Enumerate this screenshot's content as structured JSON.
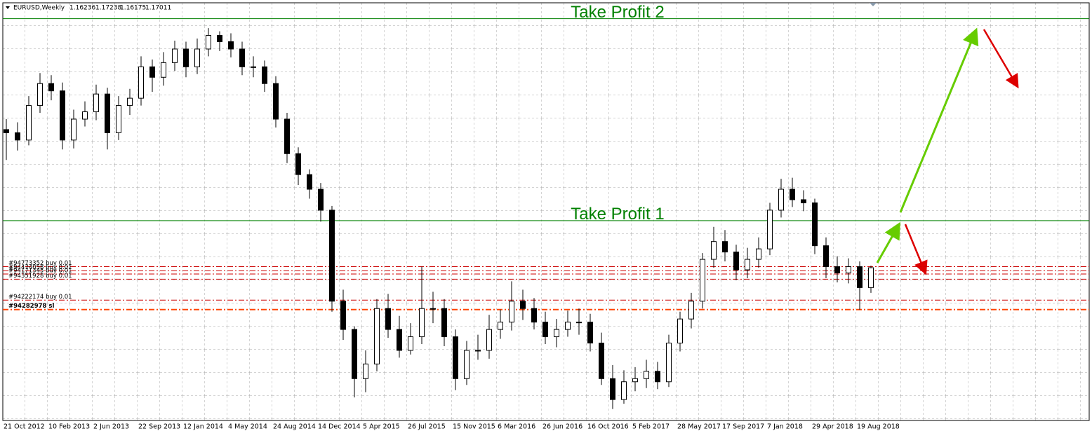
{
  "chart_data": {
    "type": "candlestick",
    "symbol": "EURUSD,Weekly",
    "quote": [
      1.16236,
      1.17238,
      1.16175,
      1.17011
    ],
    "up_color": "#ffffff",
    "down_color": "#000000",
    "ylim": [
      1.024,
      1.4225
    ],
    "grid": true,
    "categories": [
      "21 Oct 2012",
      null,
      null,
      null,
      "10 Feb 2013",
      null,
      null,
      null,
      "2 Jun 2013",
      null,
      null,
      null,
      "22 Sep 2013",
      null,
      null,
      null,
      "12 Jan 2014",
      null,
      null,
      null,
      "4 May 2014",
      null,
      null,
      null,
      "24 Aug 2014",
      null,
      null,
      null,
      "14 Dec 2014",
      null,
      null,
      null,
      "5 Apr 2015",
      null,
      null,
      null,
      "26 Jul 2015",
      null,
      null,
      null,
      "15 Nov 2015",
      null,
      null,
      null,
      "6 Mar 2016",
      null,
      null,
      null,
      "26 Jun 2016",
      null,
      null,
      null,
      "16 Oct 2016",
      null,
      null,
      null,
      "5 Feb 2017",
      null,
      null,
      null,
      "28 May 2017",
      null,
      null,
      null,
      "17 Sep 2017",
      null,
      null,
      null,
      "7 Jan 2018",
      null,
      null,
      null,
      "29 Apr 2018",
      null,
      null,
      null,
      "19 Aug 2018",
      null
    ],
    "open": [
      1.302,
      1.299,
      1.292,
      1.325,
      1.346,
      1.339,
      1.292,
      1.312,
      1.319,
      1.336,
      1.299,
      1.325,
      1.332,
      1.362,
      1.352,
      1.366,
      1.379,
      1.362,
      1.379,
      1.392,
      1.386,
      1.379,
      1.362,
      1.362,
      1.346,
      1.312,
      1.279,
      1.259,
      1.245,
      1.225,
      1.138,
      1.111,
      1.064,
      1.078,
      1.131,
      1.111,
      1.091,
      1.104,
      1.131,
      1.131,
      1.104,
      1.064,
      1.091,
      1.091,
      1.111,
      1.118,
      1.138,
      1.131,
      1.118,
      1.104,
      1.111,
      1.118,
      1.118,
      1.098,
      1.064,
      1.044,
      1.061,
      1.064,
      1.071,
      1.061,
      1.098,
      1.121,
      1.138,
      1.178,
      1.195,
      1.185,
      1.168,
      1.178,
      1.188,
      1.225,
      1.245,
      1.235,
      1.232,
      1.191,
      1.171,
      1.165,
      1.171,
      1.151
    ],
    "high": [
      1.312,
      1.309,
      1.334,
      1.356,
      1.354,
      1.347,
      1.321,
      1.329,
      1.345,
      1.342,
      1.334,
      1.341,
      1.372,
      1.369,
      1.376,
      1.387,
      1.386,
      1.389,
      1.399,
      1.396,
      1.394,
      1.386,
      1.372,
      1.368,
      1.353,
      1.318,
      1.285,
      1.264,
      1.251,
      1.229,
      1.149,
      1.114,
      1.091,
      1.14,
      1.145,
      1.124,
      1.117,
      1.171,
      1.147,
      1.14,
      1.111,
      1.1,
      1.106,
      1.125,
      1.13,
      1.157,
      1.149,
      1.141,
      1.128,
      1.121,
      1.129,
      1.131,
      1.126,
      1.108,
      1.077,
      1.072,
      1.075,
      1.082,
      1.08,
      1.106,
      1.128,
      1.146,
      1.184,
      1.209,
      1.206,
      1.192,
      1.189,
      1.199,
      1.232,
      1.255,
      1.256,
      1.244,
      1.236,
      1.199,
      1.181,
      1.179,
      1.176,
      1.172
    ],
    "low": [
      1.273,
      1.282,
      1.287,
      1.318,
      1.33,
      1.283,
      1.284,
      1.305,
      1.311,
      1.283,
      1.292,
      1.316,
      1.325,
      1.338,
      1.344,
      1.358,
      1.352,
      1.355,
      1.372,
      1.377,
      1.371,
      1.354,
      1.352,
      1.338,
      1.304,
      1.27,
      1.249,
      1.236,
      1.214,
      1.128,
      1.101,
      1.046,
      1.051,
      1.071,
      1.103,
      1.084,
      1.087,
      1.097,
      1.117,
      1.095,
      1.053,
      1.058,
      1.082,
      1.083,
      1.102,
      1.11,
      1.12,
      1.111,
      1.097,
      1.094,
      1.104,
      1.106,
      1.09,
      1.058,
      1.035,
      1.04,
      1.052,
      1.055,
      1.054,
      1.056,
      1.09,
      1.112,
      1.131,
      1.17,
      1.176,
      1.158,
      1.16,
      1.17,
      1.182,
      1.218,
      1.228,
      1.224,
      1.183,
      1.16,
      1.156,
      1.155,
      1.13,
      1.146
    ],
    "close": [
      1.299,
      1.292,
      1.325,
      1.346,
      1.339,
      1.292,
      1.312,
      1.319,
      1.336,
      1.299,
      1.325,
      1.332,
      1.362,
      1.352,
      1.366,
      1.379,
      1.362,
      1.379,
      1.392,
      1.386,
      1.379,
      1.362,
      1.362,
      1.346,
      1.312,
      1.279,
      1.259,
      1.245,
      1.225,
      1.138,
      1.111,
      1.064,
      1.078,
      1.131,
      1.111,
      1.091,
      1.104,
      1.131,
      1.131,
      1.104,
      1.064,
      1.091,
      1.091,
      1.111,
      1.118,
      1.138,
      1.131,
      1.118,
      1.104,
      1.111,
      1.118,
      1.118,
      1.098,
      1.064,
      1.044,
      1.061,
      1.064,
      1.071,
      1.061,
      1.098,
      1.121,
      1.138,
      1.178,
      1.195,
      1.185,
      1.168,
      1.178,
      1.188,
      1.225,
      1.245,
      1.235,
      1.232,
      1.191,
      1.171,
      1.165,
      1.171,
      1.151,
      1.17
    ],
    "targets": [
      {
        "label": "Take Profit 2",
        "price": 1.408,
        "color": "#008000"
      },
      {
        "label": "Take Profit 1",
        "price": 1.215,
        "color": "#008000"
      }
    ],
    "orders": [
      {
        "label": "#94773352 buy 0.01",
        "price": 1.171,
        "color": "#cc0000"
      },
      {
        "label": "#94474058 buy 0.01",
        "price": 1.167,
        "color": "#cc0000"
      },
      {
        "label": "#94171345 buy 0.01",
        "price": 1.164,
        "color": "#cc0000"
      },
      {
        "label": "#94351928 buy 0.01",
        "price": 1.159,
        "color": "#cc0000"
      },
      {
        "label": "#94222174 buy 0.01",
        "price": 1.139,
        "color": "#cc0000"
      },
      {
        "label": "#94282978 sl",
        "price": 1.13,
        "color": "#ff4500"
      }
    ]
  }
}
